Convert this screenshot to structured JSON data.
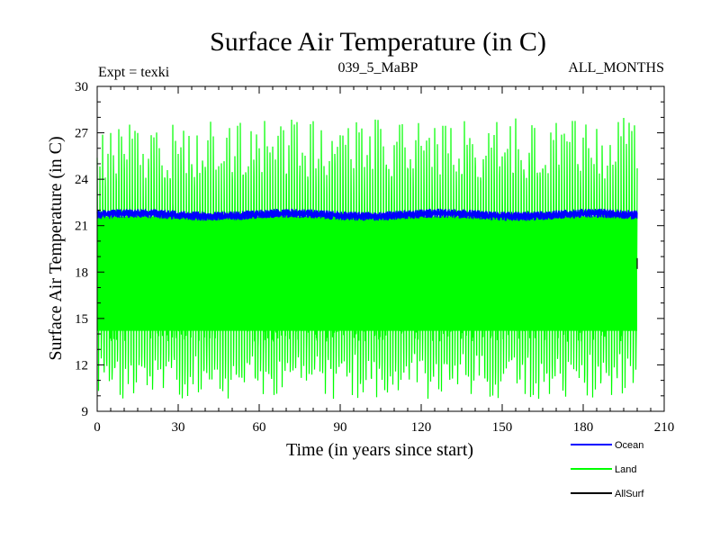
{
  "chart_data": {
    "type": "line",
    "title": "Surface Air Temperature (in C)",
    "experiment_label": "Expt = texki",
    "run_label": "039_5_MaBP",
    "season_label": "ALL_MONTHS",
    "xlabel": "Time (in years since start)",
    "ylabel": "Surface Air Temperature (in C)",
    "xlim": [
      0,
      210
    ],
    "ylim": [
      9,
      30
    ],
    "x_ticks": [
      "0",
      "30",
      "60",
      "90",
      "120",
      "150",
      "180",
      "210"
    ],
    "y_ticks": [
      "9",
      "12",
      "15",
      "18",
      "21",
      "24",
      "27",
      "30"
    ],
    "grid": false,
    "legend_position": "bottom-right",
    "series": [
      {
        "name": "Ocean",
        "color": "#0000ff",
        "kind": "band",
        "x_range": [
          0,
          200
        ],
        "lower": 21.4,
        "upper": 22.0,
        "mean": 21.7
      },
      {
        "name": "Land",
        "color": "#00ff00",
        "kind": "seasonal-oscillation",
        "x_range": [
          0,
          200
        ],
        "min": 9.8,
        "max": 28.0,
        "mean": 18.5
      },
      {
        "name": "AllSurf",
        "color": "#000000",
        "kind": "line",
        "x_range": [
          199,
          200
        ],
        "values_at_end": [
          18.2,
          18.9
        ]
      }
    ]
  }
}
